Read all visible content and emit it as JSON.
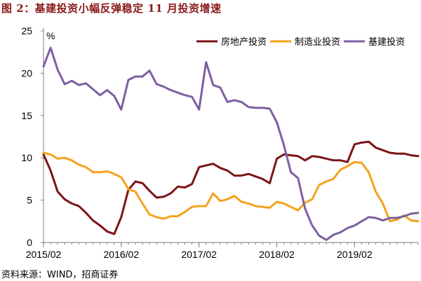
{
  "title": "图 2：基建投资小幅反弹稳定 11 月投资增速",
  "source": "资料来源：WIND，招商证券",
  "chart_data": {
    "type": "line",
    "unit_label": "%",
    "x_tick_labels": [
      "2015/02",
      "2016/02",
      "2017/02",
      "2018/02",
      "2019/02"
    ],
    "y_ticks": [
      0,
      5,
      10,
      15,
      20,
      25
    ],
    "ylim": [
      0,
      25
    ],
    "grid": false,
    "legend": "top-right",
    "x": [
      "2015/02",
      "2015/03",
      "2015/04",
      "2015/05",
      "2015/06",
      "2015/07",
      "2015/08",
      "2015/09",
      "2015/10",
      "2015/11",
      "2015/12",
      "2016/02",
      "2016/03",
      "2016/04",
      "2016/05",
      "2016/06",
      "2016/07",
      "2016/08",
      "2016/09",
      "2016/10",
      "2016/11",
      "2016/12",
      "2017/02",
      "2017/03",
      "2017/04",
      "2017/05",
      "2017/06",
      "2017/07",
      "2017/08",
      "2017/09",
      "2017/10",
      "2017/11",
      "2017/12",
      "2018/02",
      "2018/03",
      "2018/04",
      "2018/05",
      "2018/06",
      "2018/07",
      "2018/08",
      "2018/09",
      "2018/10",
      "2018/11",
      "2018/12",
      "2019/02",
      "2019/03",
      "2019/04",
      "2019/05",
      "2019/06",
      "2019/07",
      "2019/08",
      "2019/09",
      "2019/10",
      "2019/11"
    ],
    "series": [
      {
        "name": "房地产投资",
        "color": "#7b1517",
        "values": [
          10.4,
          8.5,
          6.0,
          5.1,
          4.6,
          4.3,
          3.5,
          2.6,
          2.0,
          1.3,
          1.0,
          3.0,
          6.2,
          7.2,
          7.0,
          6.1,
          5.3,
          5.4,
          5.8,
          6.6,
          6.5,
          6.9,
          8.9,
          9.1,
          9.3,
          8.8,
          8.5,
          7.9,
          7.9,
          8.1,
          7.8,
          7.5,
          7.0,
          9.9,
          10.4,
          10.3,
          10.2,
          9.7,
          10.2,
          10.1,
          9.9,
          9.7,
          9.7,
          9.5,
          11.6,
          11.8,
          11.9,
          11.2,
          10.9,
          10.6,
          10.5,
          10.5,
          10.3,
          10.2
        ]
      },
      {
        "name": "制造业投资",
        "color": "#f5a21d",
        "values": [
          10.6,
          10.4,
          9.9,
          10.0,
          9.7,
          9.2,
          8.9,
          8.3,
          8.3,
          8.4,
          8.1,
          7.7,
          6.3,
          6.0,
          4.6,
          3.3,
          3.0,
          2.8,
          3.1,
          3.1,
          3.6,
          4.2,
          4.3,
          4.3,
          5.8,
          4.9,
          5.1,
          5.5,
          4.8,
          4.6,
          4.3,
          4.2,
          4.1,
          4.8,
          4.6,
          4.2,
          3.8,
          4.7,
          5.1,
          6.8,
          7.2,
          7.5,
          8.6,
          9.0,
          9.5,
          9.4,
          8.3,
          6.0,
          4.6,
          2.5,
          2.7,
          3.2,
          2.6,
          2.5
        ]
      },
      {
        "name": "基建投资",
        "color": "#7e5fa1",
        "values": [
          20.8,
          23.0,
          20.4,
          18.7,
          19.1,
          18.6,
          18.8,
          18.1,
          17.4,
          18.0,
          17.3,
          15.7,
          19.2,
          19.6,
          19.6,
          20.3,
          18.7,
          18.4,
          18.0,
          17.7,
          17.4,
          17.2,
          15.7,
          21.3,
          18.6,
          18.3,
          16.6,
          16.8,
          16.6,
          16.0,
          15.9,
          15.9,
          15.8,
          14.2,
          11.5,
          8.3,
          7.6,
          4.0,
          2.0,
          0.8,
          0.3,
          0.9,
          1.2,
          1.7,
          2.0,
          2.5,
          3.0,
          2.9,
          2.6,
          2.9,
          2.9,
          3.1,
          3.4,
          3.5
        ]
      }
    ]
  }
}
